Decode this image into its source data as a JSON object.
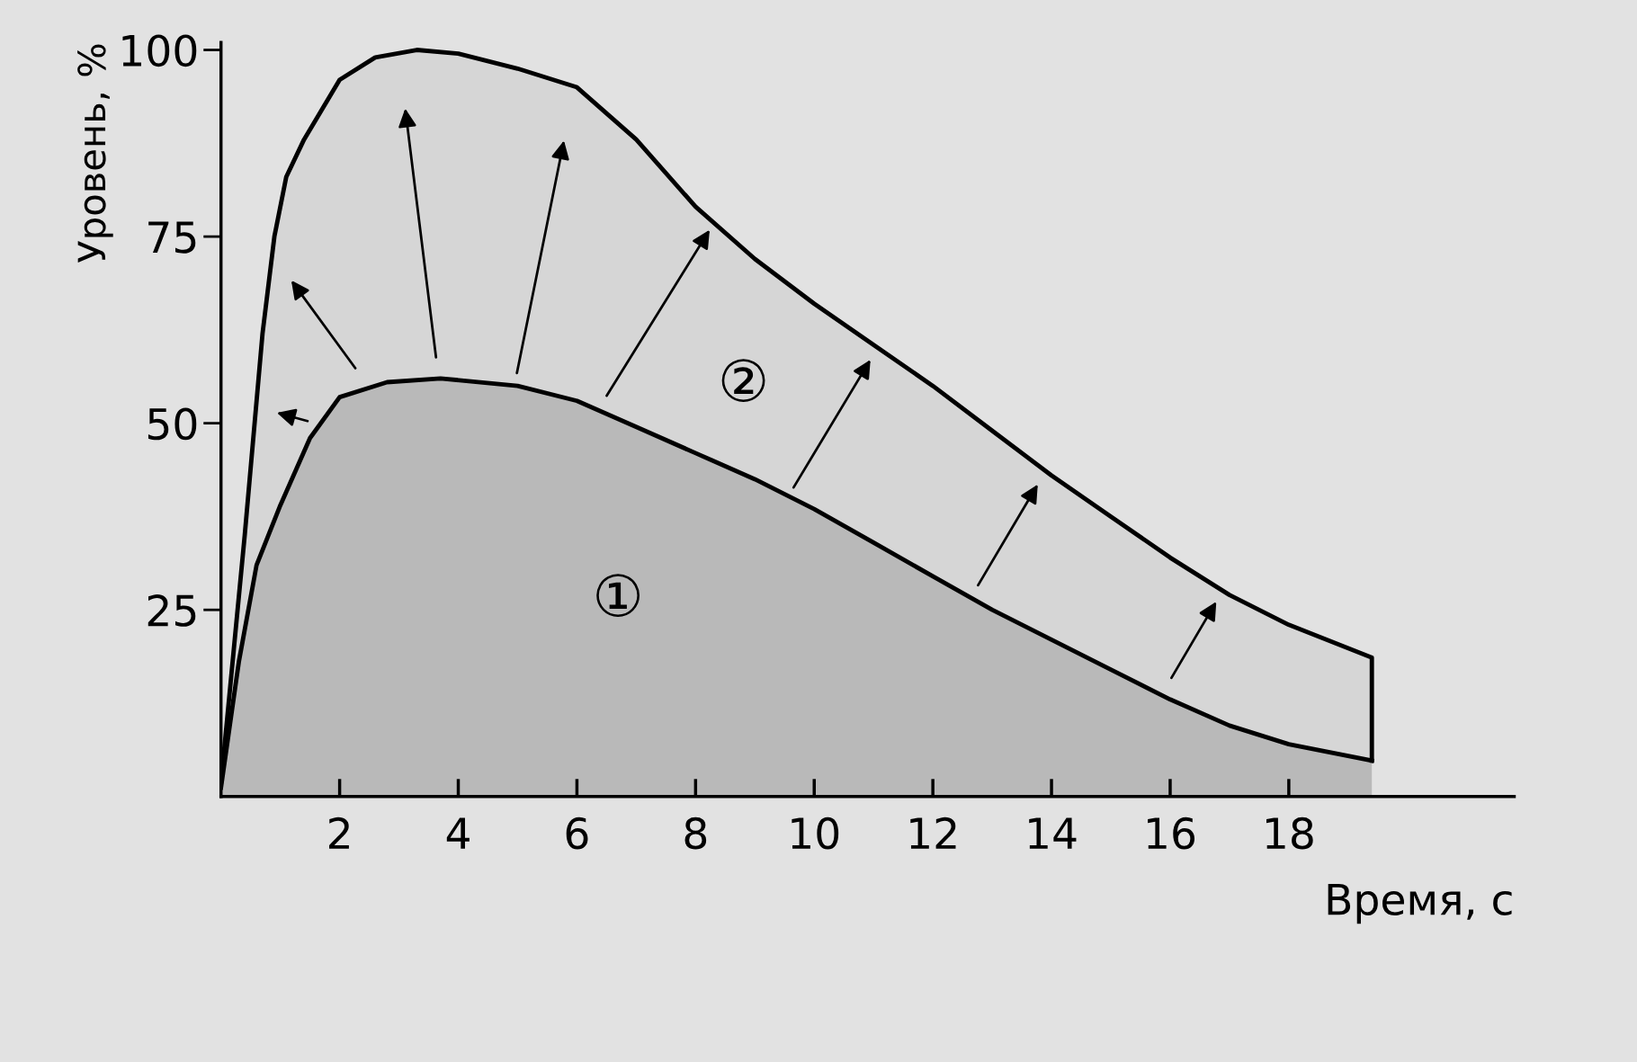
{
  "chart_data": {
    "type": "area",
    "xlabel": "Время, с",
    "ylabel": "Уровень, %",
    "xlim": [
      0,
      21.8
    ],
    "ylim": [
      0,
      101
    ],
    "xticks": [
      2,
      4,
      6,
      8,
      10,
      12,
      14,
      16,
      18
    ],
    "yticks": [
      25,
      50,
      75,
      100
    ],
    "grid": false,
    "line_style": "solid",
    "marker": "none",
    "series": [
      {
        "color": "#b9b9b9",
        "x": [
          0,
          0.3,
          0.6,
          1,
          1.5,
          2,
          2.8,
          3.7,
          5,
          6,
          7,
          8,
          9,
          10,
          11,
          12,
          13,
          14,
          15,
          16,
          17,
          18,
          19.4
        ],
        "values": [
          1.2,
          18,
          31,
          39,
          48,
          53.5,
          55.5,
          56,
          55,
          53,
          49.5,
          46,
          42.5,
          38.5,
          34,
          29.5,
          25,
          21,
          17,
          13,
          9.5,
          7,
          4.8
        ]
      },
      {
        "color": "#d6d6d6",
        "x": [
          0,
          0.4,
          0.7,
          0.9,
          1.1,
          1.4,
          2,
          2.6,
          3.3,
          4,
          5,
          6,
          7,
          8,
          9,
          10,
          11,
          12,
          13,
          14,
          15,
          16,
          17,
          18,
          19.4,
          19.4
        ],
        "values": [
          1.8,
          35,
          62,
          75,
          83,
          88,
          96,
          99,
          100,
          99.5,
          97.5,
          95,
          88,
          79,
          72,
          66,
          60.5,
          55,
          49,
          43,
          37.5,
          32,
          27,
          23,
          18.6,
          4.8
        ]
      }
    ],
    "annotations": [
      "①",
      "②"
    ]
  }
}
